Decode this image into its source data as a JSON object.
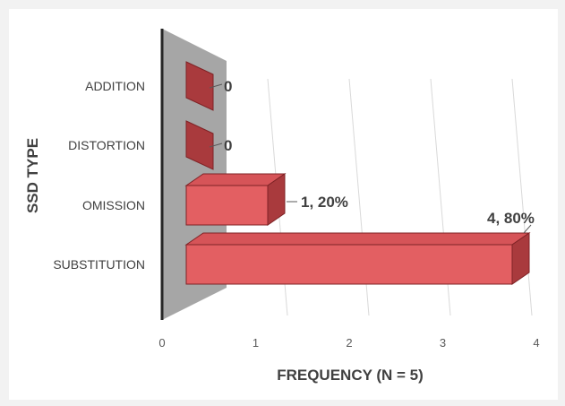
{
  "chart_data": {
    "type": "bar",
    "orientation": "horizontal",
    "style": "3d",
    "categories": [
      "ADDITION",
      "DISTORTION",
      "OMISSION",
      "SUBSTITUTION"
    ],
    "values": [
      0,
      0,
      1,
      4
    ],
    "data_labels": [
      "0",
      "0",
      "1, 20%",
      "4, 80%"
    ],
    "xlabel": "FREQUENCY (N = 5)",
    "ylabel": "SSD TYPE",
    "xlim": [
      0,
      4
    ],
    "x_ticks": [
      "0",
      "1",
      "2",
      "3",
      "4"
    ],
    "grid": true,
    "legend": "none",
    "colors": {
      "bar_front": "#e35f62",
      "bar_top": "#d65458",
      "bar_side": "#a93a3d",
      "bar_edge": "#7f2326",
      "back_wall": "#a6a6a6",
      "gridline": "#d9d9d9",
      "text": "#404040",
      "background": "#ffffff"
    }
  }
}
